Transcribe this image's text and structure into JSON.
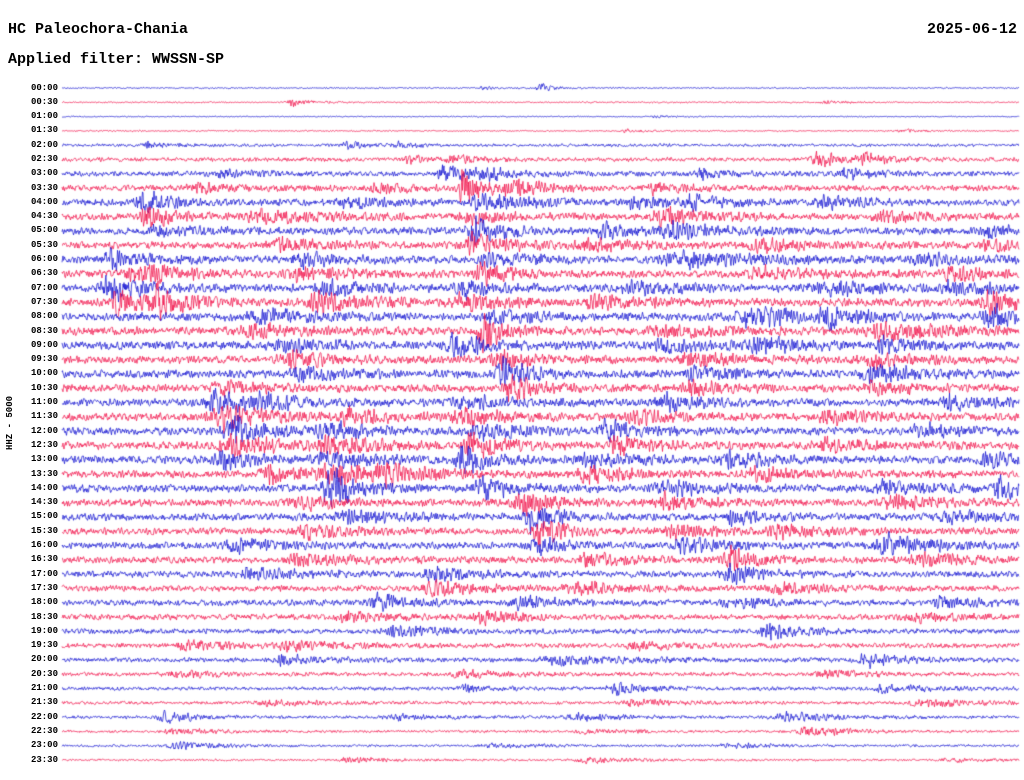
{
  "chart_data": {
    "type": "line",
    "kind": "helicorder-day-plot",
    "station_title": "HC Paleochora-Chania",
    "date": "2025-06-12",
    "filter": "Applied filter: WWSSN-SP",
    "ylabel": "HHZ - 5000",
    "trace_interval_minutes": 30,
    "grid": false,
    "legend": false,
    "colors": {
      "even": "#1414d2",
      "odd": "#f2134b",
      "text": "#000000",
      "background": "#ffffff"
    },
    "traces": [
      {
        "time": "00:00",
        "amp": 0.6,
        "events": [
          [
            0.44,
            1.5,
            0.006
          ],
          [
            0.5,
            4,
            0.006
          ]
        ]
      },
      {
        "time": "00:30",
        "amp": 0.6,
        "events": [
          [
            0.24,
            3.5,
            0.008
          ],
          [
            0.8,
            1.2,
            0.01
          ]
        ]
      },
      {
        "time": "01:00",
        "amp": 0.5,
        "events": [
          [
            0.62,
            1,
            0.008
          ]
        ]
      },
      {
        "time": "01:30",
        "amp": 0.6,
        "events": [
          [
            0.59,
            1.5,
            0.008
          ],
          [
            0.88,
            1.2,
            0.01
          ]
        ]
      },
      {
        "time": "02:00",
        "amp": 1.3,
        "events": [
          [
            0.09,
            2.5,
            0.008
          ],
          [
            0.3,
            3,
            0.01
          ],
          [
            0.35,
            2.5,
            0.008
          ]
        ]
      },
      {
        "time": "02:30",
        "amp": 1.8,
        "events": [
          [
            0.36,
            3,
            0.012
          ],
          [
            0.41,
            4,
            0.01
          ],
          [
            0.79,
            7,
            0.012
          ],
          [
            0.84,
            5,
            0.01
          ]
        ]
      },
      {
        "time": "03:00",
        "amp": 2.2,
        "events": [
          [
            0.17,
            3,
            0.015
          ],
          [
            0.4,
            8,
            0.012
          ],
          [
            0.44,
            5,
            0.012
          ],
          [
            0.67,
            4,
            0.012
          ],
          [
            0.82,
            4,
            0.015
          ]
        ]
      },
      {
        "time": "03:30",
        "amp": 2.6,
        "events": [
          [
            0.14,
            4,
            0.015
          ],
          [
            0.33,
            4,
            0.015
          ],
          [
            0.42,
            20,
            0.008
          ],
          [
            0.47,
            7,
            0.015
          ],
          [
            0.62,
            4,
            0.015
          ]
        ]
      },
      {
        "time": "04:00",
        "amp": 3.0,
        "events": [
          [
            0.085,
            9,
            0.012
          ],
          [
            0.3,
            4,
            0.02
          ],
          [
            0.44,
            7,
            0.02
          ],
          [
            0.6,
            6,
            0.012
          ],
          [
            0.66,
            5,
            0.015
          ],
          [
            0.8,
            4,
            0.02
          ]
        ]
      },
      {
        "time": "04:30",
        "amp": 3.0,
        "events": [
          [
            0.09,
            11,
            0.012
          ],
          [
            0.21,
            5,
            0.03
          ],
          [
            0.42,
            5,
            0.02
          ],
          [
            0.63,
            7,
            0.02
          ],
          [
            0.86,
            4,
            0.02
          ]
        ]
      },
      {
        "time": "05:00",
        "amp": 3.2,
        "events": [
          [
            0.1,
            4,
            0.02
          ],
          [
            0.43,
            12,
            0.012
          ],
          [
            0.57,
            5,
            0.02
          ],
          [
            0.64,
            6,
            0.02
          ],
          [
            0.97,
            5,
            0.012
          ]
        ]
      },
      {
        "time": "05:30",
        "amp": 3.2,
        "events": [
          [
            0.23,
            5,
            0.02
          ],
          [
            0.43,
            10,
            0.015
          ],
          [
            0.55,
            5,
            0.02
          ],
          [
            0.73,
            6,
            0.015
          ],
          [
            0.97,
            5,
            0.012
          ]
        ]
      },
      {
        "time": "06:00",
        "amp": 3.4,
        "events": [
          [
            0.05,
            8,
            0.015
          ],
          [
            0.25,
            6,
            0.015
          ],
          [
            0.45,
            5,
            0.02
          ],
          [
            0.65,
            6,
            0.03
          ],
          [
            0.9,
            4,
            0.02
          ]
        ]
      },
      {
        "time": "06:30",
        "amp": 3.4,
        "events": [
          [
            0.08,
            8,
            0.02
          ],
          [
            0.25,
            5,
            0.02
          ],
          [
            0.44,
            10,
            0.012
          ],
          [
            0.73,
            5,
            0.02
          ],
          [
            0.93,
            7,
            0.012
          ]
        ]
      },
      {
        "time": "07:00",
        "amp": 3.4,
        "events": [
          [
            0.05,
            10,
            0.015
          ],
          [
            0.28,
            5,
            0.02
          ],
          [
            0.42,
            8,
            0.015
          ],
          [
            0.6,
            5,
            0.02
          ],
          [
            0.8,
            6,
            0.02
          ],
          [
            0.93,
            6,
            0.015
          ]
        ]
      },
      {
        "time": "07:30",
        "amp": 3.6,
        "events": [
          [
            0.06,
            9,
            0.015
          ],
          [
            0.1,
            12,
            0.012
          ],
          [
            0.27,
            8,
            0.02
          ],
          [
            0.42,
            6,
            0.02
          ],
          [
            0.56,
            5,
            0.02
          ],
          [
            0.97,
            9,
            0.012
          ]
        ]
      },
      {
        "time": "08:00",
        "amp": 3.6,
        "events": [
          [
            0.21,
            6,
            0.02
          ],
          [
            0.45,
            5,
            0.02
          ],
          [
            0.72,
            9,
            0.02
          ],
          [
            0.8,
            7,
            0.015
          ],
          [
            0.97,
            11,
            0.012
          ]
        ]
      },
      {
        "time": "08:30",
        "amp": 3.6,
        "events": [
          [
            0.2,
            5,
            0.02
          ],
          [
            0.44,
            16,
            0.01
          ],
          [
            0.63,
            5,
            0.02
          ],
          [
            0.86,
            7,
            0.03
          ]
        ]
      },
      {
        "time": "09:00",
        "amp": 3.6,
        "events": [
          [
            0.23,
            5,
            0.02
          ],
          [
            0.41,
            11,
            0.012
          ],
          [
            0.63,
            5,
            0.02
          ],
          [
            0.73,
            6,
            0.02
          ],
          [
            0.86,
            6,
            0.015
          ]
        ]
      },
      {
        "time": "09:30",
        "amp": 3.4,
        "events": [
          [
            0.24,
            6,
            0.02
          ],
          [
            0.46,
            8,
            0.015
          ],
          [
            0.66,
            5,
            0.02
          ],
          [
            0.85,
            5,
            0.02
          ]
        ]
      },
      {
        "time": "10:00",
        "amp": 3.4,
        "events": [
          [
            0.25,
            5,
            0.02
          ],
          [
            0.46,
            14,
            0.012
          ],
          [
            0.66,
            5,
            0.02
          ],
          [
            0.85,
            8,
            0.02
          ]
        ]
      },
      {
        "time": "10:30",
        "amp": 3.4,
        "events": [
          [
            0.17,
            5,
            0.02
          ],
          [
            0.47,
            10,
            0.012
          ],
          [
            0.66,
            6,
            0.015
          ],
          [
            0.85,
            5,
            0.02
          ]
        ]
      },
      {
        "time": "11:00",
        "amp": 3.4,
        "events": [
          [
            0.16,
            9,
            0.015
          ],
          [
            0.21,
            6,
            0.015
          ],
          [
            0.42,
            5,
            0.02
          ],
          [
            0.63,
            8,
            0.015
          ],
          [
            0.93,
            5,
            0.02
          ]
        ]
      },
      {
        "time": "11:30",
        "amp": 3.4,
        "events": [
          [
            0.17,
            10,
            0.02
          ],
          [
            0.3,
            5,
            0.02
          ],
          [
            0.42,
            6,
            0.02
          ],
          [
            0.6,
            6,
            0.015
          ],
          [
            0.8,
            5,
            0.02
          ]
        ]
      },
      {
        "time": "12:00",
        "amp": 3.4,
        "events": [
          [
            0.18,
            12,
            0.015
          ],
          [
            0.28,
            6,
            0.02
          ],
          [
            0.44,
            6,
            0.02
          ],
          [
            0.57,
            8,
            0.015
          ],
          [
            0.9,
            5,
            0.02
          ]
        ]
      },
      {
        "time": "12:30",
        "amp": 3.4,
        "events": [
          [
            0.18,
            8,
            0.02
          ],
          [
            0.28,
            8,
            0.02
          ],
          [
            0.43,
            11,
            0.015
          ],
          [
            0.58,
            8,
            0.015
          ],
          [
            0.8,
            5,
            0.02
          ]
        ]
      },
      {
        "time": "13:00",
        "amp": 3.4,
        "events": [
          [
            0.17,
            8,
            0.015
          ],
          [
            0.28,
            6,
            0.02
          ],
          [
            0.42,
            12,
            0.012
          ],
          [
            0.55,
            6,
            0.02
          ],
          [
            0.7,
            7,
            0.015
          ],
          [
            0.97,
            6,
            0.015
          ]
        ]
      },
      {
        "time": "13:30",
        "amp": 3.4,
        "events": [
          [
            0.22,
            6,
            0.02
          ],
          [
            0.28,
            11,
            0.015
          ],
          [
            0.34,
            7,
            0.02
          ],
          [
            0.55,
            7,
            0.015
          ],
          [
            0.73,
            5,
            0.02
          ]
        ]
      },
      {
        "time": "14:00",
        "amp": 3.4,
        "events": [
          [
            0.28,
            18,
            0.012
          ],
          [
            0.44,
            8,
            0.015
          ],
          [
            0.63,
            6,
            0.02
          ],
          [
            0.86,
            5,
            0.02
          ],
          [
            0.98,
            9,
            0.01
          ]
        ]
      },
      {
        "time": "14:30",
        "amp": 3.2,
        "events": [
          [
            0.25,
            5,
            0.02
          ],
          [
            0.48,
            12,
            0.012
          ],
          [
            0.63,
            7,
            0.015
          ],
          [
            0.87,
            5,
            0.02
          ]
        ]
      },
      {
        "time": "15:00",
        "amp": 3.2,
        "events": [
          [
            0.3,
            5,
            0.02
          ],
          [
            0.49,
            14,
            0.01
          ],
          [
            0.7,
            6,
            0.015
          ],
          [
            0.93,
            5,
            0.02
          ]
        ]
      },
      {
        "time": "15:30",
        "amp": 3.0,
        "events": [
          [
            0.26,
            5,
            0.02
          ],
          [
            0.5,
            10,
            0.012
          ],
          [
            0.64,
            6,
            0.015
          ],
          [
            0.75,
            5,
            0.02
          ]
        ]
      },
      {
        "time": "16:00",
        "amp": 3.0,
        "events": [
          [
            0.18,
            5,
            0.02
          ],
          [
            0.5,
            6,
            0.015
          ],
          [
            0.65,
            7,
            0.015
          ],
          [
            0.86,
            9,
            0.02
          ]
        ]
      },
      {
        "time": "16:30",
        "amp": 3.0,
        "events": [
          [
            0.25,
            5,
            0.02
          ],
          [
            0.55,
            6,
            0.015
          ],
          [
            0.7,
            11,
            0.012
          ],
          [
            0.9,
            5,
            0.02
          ]
        ]
      },
      {
        "time": "17:00",
        "amp": 2.8,
        "events": [
          [
            0.2,
            5,
            0.02
          ],
          [
            0.39,
            6,
            0.02
          ],
          [
            0.7,
            8,
            0.015
          ]
        ]
      },
      {
        "time": "17:30",
        "amp": 2.6,
        "events": [
          [
            0.39,
            6,
            0.02
          ],
          [
            0.54,
            5,
            0.02
          ],
          [
            0.75,
            4,
            0.02
          ]
        ]
      },
      {
        "time": "18:00",
        "amp": 2.6,
        "events": [
          [
            0.33,
            7,
            0.015
          ],
          [
            0.48,
            5,
            0.02
          ],
          [
            0.7,
            4,
            0.02
          ],
          [
            0.92,
            5,
            0.015
          ]
        ]
      },
      {
        "time": "18:30",
        "amp": 2.5,
        "events": [
          [
            0.3,
            4,
            0.02
          ],
          [
            0.44,
            6,
            0.015
          ],
          [
            0.89,
            4,
            0.02
          ]
        ]
      },
      {
        "time": "19:00",
        "amp": 2.2,
        "events": [
          [
            0.35,
            4,
            0.02
          ],
          [
            0.74,
            7,
            0.015
          ]
        ]
      },
      {
        "time": "19:30",
        "amp": 2.1,
        "events": [
          [
            0.13,
            4,
            0.02
          ],
          [
            0.24,
            4,
            0.02
          ],
          [
            0.6,
            3,
            0.02
          ]
        ]
      },
      {
        "time": "20:00",
        "amp": 2.0,
        "events": [
          [
            0.23,
            4,
            0.02
          ],
          [
            0.52,
            4,
            0.03
          ],
          [
            0.84,
            6,
            0.015
          ]
        ]
      },
      {
        "time": "20:30",
        "amp": 1.7,
        "events": [
          [
            0.12,
            3,
            0.02
          ],
          [
            0.42,
            3,
            0.02
          ],
          [
            0.8,
            3,
            0.02
          ]
        ]
      },
      {
        "time": "21:00",
        "amp": 1.6,
        "events": [
          [
            0.42,
            3,
            0.012
          ],
          [
            0.58,
            5,
            0.015
          ],
          [
            0.86,
            3,
            0.02
          ]
        ]
      },
      {
        "time": "21:30",
        "amp": 1.4,
        "events": [
          [
            0.22,
            3,
            0.02
          ],
          [
            0.6,
            2.5,
            0.02
          ],
          [
            0.9,
            3.5,
            0.02
          ]
        ]
      },
      {
        "time": "22:00",
        "amp": 1.3,
        "events": [
          [
            0.11,
            5,
            0.015
          ],
          [
            0.35,
            2.5,
            0.02
          ],
          [
            0.54,
            3,
            0.02
          ],
          [
            0.76,
            4,
            0.025
          ]
        ]
      },
      {
        "time": "22:30",
        "amp": 1.1,
        "events": [
          [
            0.12,
            2.5,
            0.02
          ],
          [
            0.55,
            2,
            0.02
          ],
          [
            0.78,
            6,
            0.015
          ]
        ]
      },
      {
        "time": "23:00",
        "amp": 1.0,
        "events": [
          [
            0.12,
            3,
            0.02
          ],
          [
            0.45,
            2,
            0.02
          ],
          [
            0.7,
            2,
            0.02
          ]
        ]
      },
      {
        "time": "23:30",
        "amp": 0.9,
        "events": [
          [
            0.3,
            2,
            0.02
          ],
          [
            0.55,
            2.5,
            0.02
          ],
          [
            0.93,
            1.5,
            0.02
          ]
        ]
      }
    ]
  }
}
